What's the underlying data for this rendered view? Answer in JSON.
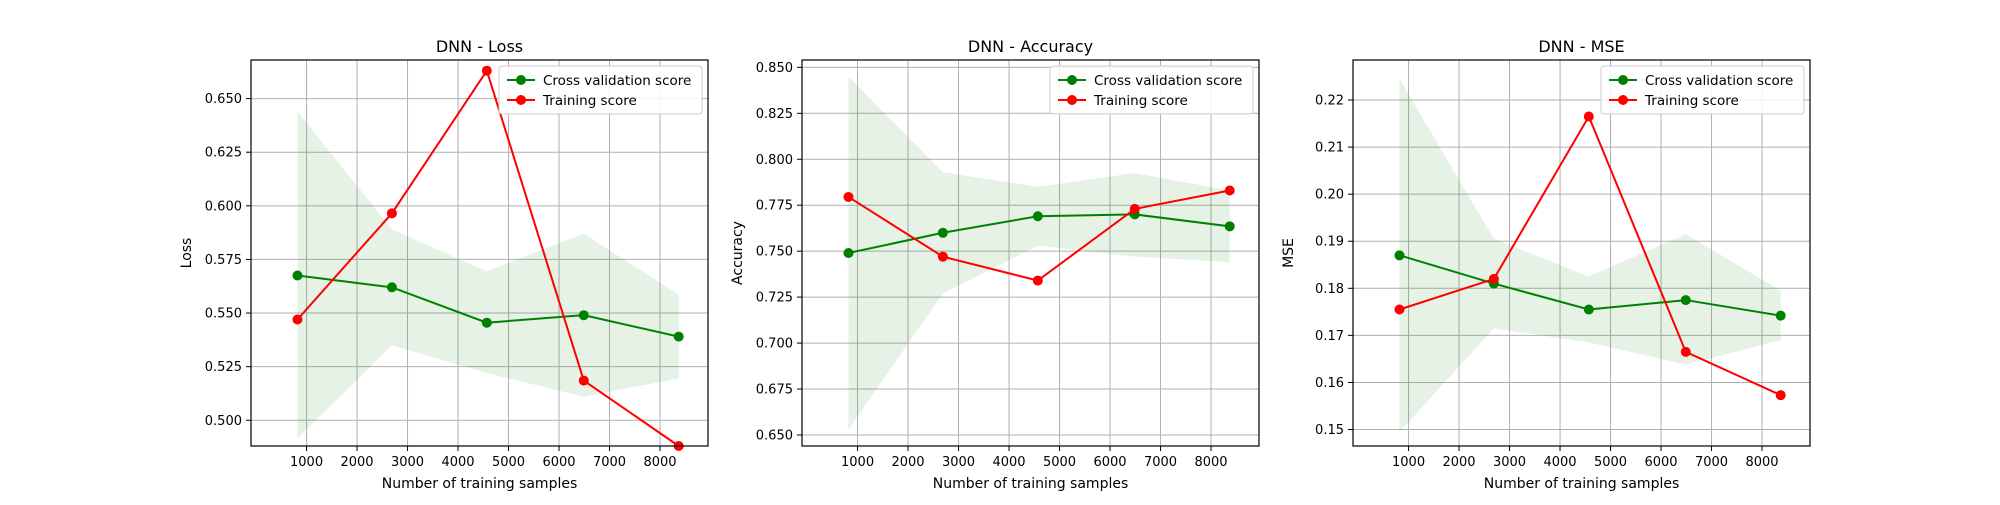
{
  "figure": {
    "background": "#ffffff"
  },
  "chart_data": [
    {
      "type": "line",
      "title": "DNN - Loss",
      "xlabel": "Number of training samples",
      "ylabel": "Loss",
      "x": [
        820,
        2690,
        4570,
        6490,
        8370
      ],
      "xlim": [
        -100,
        8950
      ],
      "ylim": [
        0.488,
        0.668
      ],
      "xticks": [
        1000,
        2000,
        3000,
        4000,
        5000,
        6000,
        7000,
        8000
      ],
      "yticks": [
        0.5,
        0.525,
        0.55,
        0.575,
        0.6,
        0.625,
        0.65
      ],
      "ytick_decimals": 3,
      "grid": true,
      "legend_position": "top-right",
      "series": [
        {
          "name": "Cross validation score",
          "color": "#008000",
          "values": [
            0.5675,
            0.562,
            0.5455,
            0.549,
            0.539
          ],
          "band_lower": [
            0.4915,
            0.535,
            0.522,
            0.511,
            0.5195
          ],
          "band_upper": [
            0.644,
            0.589,
            0.5695,
            0.587,
            0.5585
          ]
        },
        {
          "name": "Training score",
          "color": "#ff0000",
          "values": [
            0.547,
            0.5965,
            0.663,
            0.5185,
            0.488
          ]
        }
      ]
    },
    {
      "type": "line",
      "title": "DNN - Accuracy",
      "xlabel": "Number of training samples",
      "ylabel": "Accuracy",
      "x": [
        820,
        2690,
        4570,
        6490,
        8370
      ],
      "xlim": [
        -100,
        8950
      ],
      "ylim": [
        0.644,
        0.854
      ],
      "xticks": [
        1000,
        2000,
        3000,
        4000,
        5000,
        6000,
        7000,
        8000
      ],
      "yticks": [
        0.65,
        0.675,
        0.7,
        0.725,
        0.75,
        0.775,
        0.8,
        0.825,
        0.85
      ],
      "ytick_decimals": 3,
      "grid": true,
      "legend_position": "top-right",
      "series": [
        {
          "name": "Cross validation score",
          "color": "#008000",
          "values": [
            0.749,
            0.76,
            0.769,
            0.77,
            0.7635
          ],
          "band_lower": [
            0.653,
            0.727,
            0.753,
            0.747,
            0.744
          ],
          "band_upper": [
            0.845,
            0.793,
            0.785,
            0.7925,
            0.783
          ]
        },
        {
          "name": "Training score",
          "color": "#ff0000",
          "values": [
            0.7795,
            0.747,
            0.734,
            0.773,
            0.783
          ]
        }
      ]
    },
    {
      "type": "line",
      "title": "DNN - MSE",
      "xlabel": "Number of training samples",
      "ylabel": "MSE",
      "x": [
        820,
        2690,
        4570,
        6490,
        8370
      ],
      "xlim": [
        -100,
        8950
      ],
      "ylim": [
        0.1465,
        0.2285
      ],
      "xticks": [
        1000,
        2000,
        3000,
        4000,
        5000,
        6000,
        7000,
        8000
      ],
      "yticks": [
        0.15,
        0.16,
        0.17,
        0.18,
        0.19,
        0.2,
        0.21,
        0.22
      ],
      "ytick_decimals": 2,
      "grid": true,
      "legend_position": "top-right",
      "series": [
        {
          "name": "Cross validation score",
          "color": "#008000",
          "values": [
            0.187,
            0.181,
            0.1755,
            0.1775,
            0.1742
          ],
          "band_lower": [
            0.1495,
            0.1715,
            0.1685,
            0.1638,
            0.169
          ],
          "band_upper": [
            0.2245,
            0.1905,
            0.1825,
            0.1915,
            0.1795
          ]
        },
        {
          "name": "Training score",
          "color": "#ff0000",
          "values": [
            0.1755,
            0.182,
            0.2165,
            0.1665,
            0.1573
          ]
        }
      ]
    }
  ]
}
